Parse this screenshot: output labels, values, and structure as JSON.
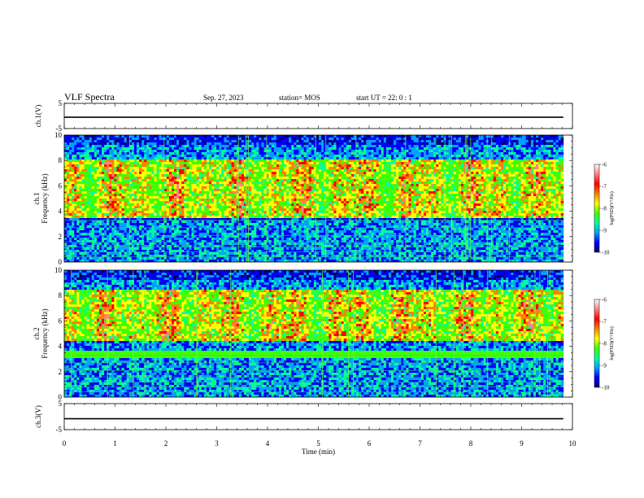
{
  "header": {
    "title": "VLF Spectra",
    "date": "Sep. 27, 2023",
    "station": "station= MOS",
    "start": "start  UT =   22: 0  : 1"
  },
  "chart_data": [
    {
      "type": "line",
      "name": "ch1-waveform",
      "ylabel": "ch.1(V)",
      "ylim": [
        -5,
        5
      ],
      "yticks": [
        5,
        -5
      ],
      "x": [
        0,
        9.82
      ],
      "values": [
        -0.5,
        -0.5
      ],
      "xlim": [
        0,
        10
      ]
    },
    {
      "type": "heatmap",
      "name": "ch1-spectrogram",
      "ylabel_line1": "ch.1",
      "ylabel_line2": "Frequency (kHz)",
      "ylim": [
        0,
        10
      ],
      "yticks": [
        0,
        2,
        4,
        6,
        8,
        10
      ],
      "xlim": [
        0,
        10
      ],
      "colorbar": {
        "label": "log(PSD)(V²/Hz)",
        "range": [
          -10,
          -6
        ],
        "ticks": [
          -6,
          -7,
          -8,
          -9,
          -10
        ]
      }
    },
    {
      "type": "heatmap",
      "name": "ch2-spectrogram",
      "ylabel_line1": "ch.2",
      "ylabel_line2": "Frequency (kHz)",
      "ylim": [
        0,
        10
      ],
      "yticks": [
        0,
        2,
        4,
        6,
        8,
        10
      ],
      "xlim": [
        0,
        10
      ],
      "colorbar": {
        "label": "log(PSD)(V²/Hz)",
        "range": [
          -10,
          -6
        ],
        "ticks": [
          -6,
          -7,
          -8,
          -9,
          -10
        ]
      }
    },
    {
      "type": "line",
      "name": "ch3-waveform",
      "ylabel": "ch.3(V)",
      "ylim": [
        -5,
        5
      ],
      "yticks": [
        5,
        -5
      ],
      "x": [
        0,
        9.82
      ],
      "values": [
        -0.8,
        -0.8
      ],
      "xlim": [
        0,
        10
      ],
      "xlabel": "Time (min)",
      "xticks": [
        0,
        1,
        2,
        3,
        4,
        5,
        6,
        7,
        8,
        9,
        10
      ]
    }
  ],
  "colors": {
    "background": "#000000",
    "colormap": [
      "#00006e",
      "#0000ff",
      "#00a0ff",
      "#00ffa0",
      "#40ff00",
      "#ffff00",
      "#ff8000",
      "#ff0000",
      "#ff8080",
      "#ffffff"
    ]
  }
}
